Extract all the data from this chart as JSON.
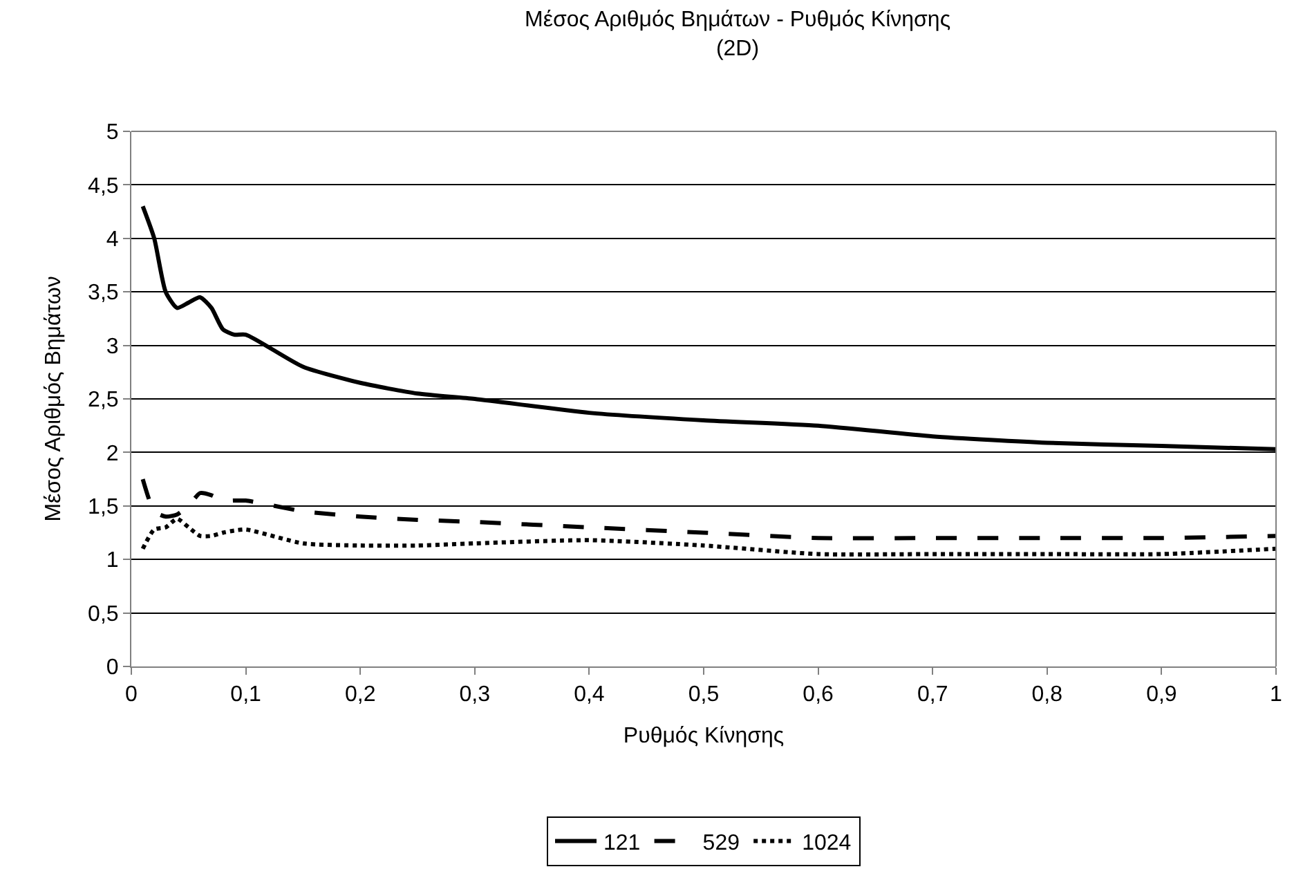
{
  "chart_data": {
    "type": "line",
    "title": "Μέσος Αριθμός Βημάτων - Ρυθμός Κίνησης\n(2D)",
    "xlabel": "Ρυθμός Κίνησης",
    "ylabel": "Μέσος Αριθμός Βημάτων",
    "x": [
      0.01,
      0.02,
      0.03,
      0.04,
      0.05,
      0.06,
      0.07,
      0.08,
      0.09,
      0.1,
      0.15,
      0.2,
      0.25,
      0.3,
      0.4,
      0.5,
      0.6,
      0.7,
      0.8,
      0.9,
      1
    ],
    "series": [
      {
        "name": "121",
        "color": "#000000",
        "line_style": "solid",
        "values": [
          4.3,
          4.0,
          3.5,
          3.35,
          3.4,
          3.45,
          3.35,
          3.15,
          3.1,
          3.1,
          2.8,
          2.65,
          2.55,
          2.5,
          2.37,
          2.3,
          2.25,
          2.15,
          2.09,
          2.06,
          2.03
        ]
      },
      {
        "name": "529",
        "color": "#000000",
        "line_style": "dashed",
        "values": [
          1.75,
          1.45,
          1.4,
          1.42,
          1.5,
          1.62,
          1.6,
          1.55,
          1.55,
          1.55,
          1.45,
          1.4,
          1.37,
          1.35,
          1.3,
          1.25,
          1.2,
          1.2,
          1.2,
          1.2,
          1.22
        ]
      },
      {
        "name": "1024",
        "color": "#000000",
        "line_style": "dotted",
        "values": [
          1.1,
          1.28,
          1.3,
          1.38,
          1.3,
          1.22,
          1.22,
          1.25,
          1.27,
          1.28,
          1.15,
          1.13,
          1.13,
          1.15,
          1.18,
          1.13,
          1.05,
          1.05,
          1.05,
          1.05,
          1.1
        ]
      }
    ],
    "xlim": [
      0,
      1
    ],
    "xticks": [
      0,
      {
        "value": 0.1,
        "label": "0,1"
      },
      {
        "value": 0.2,
        "label": "0,2"
      },
      {
        "value": 0.3,
        "label": "0,3"
      },
      {
        "value": 0.4,
        "label": "0,4"
      },
      {
        "value": 0.5,
        "label": "0,5"
      },
      {
        "value": 0.6,
        "label": "0,6"
      },
      {
        "value": 0.7,
        "label": "0,7"
      },
      {
        "value": 0.8,
        "label": "0,8"
      },
      {
        "value": 0.9,
        "label": "0,9"
      },
      1
    ],
    "ylim": [
      0,
      5
    ],
    "yticks": [
      0,
      {
        "value": 0.5,
        "label": "0,5"
      },
      1,
      {
        "value": 1.5,
        "label": "1,5"
      },
      2,
      {
        "value": 2.5,
        "label": "2,5"
      },
      3,
      {
        "value": 3.5,
        "label": "3,5"
      },
      4,
      {
        "value": 4.5,
        "label": "4,5"
      },
      5
    ],
    "grid": "y",
    "legend": "bottom",
    "marker": "none"
  }
}
